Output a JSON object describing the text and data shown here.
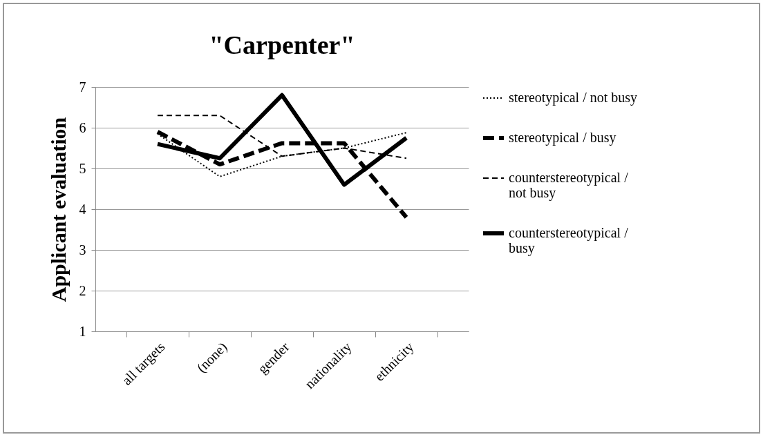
{
  "chart_data": {
    "type": "line",
    "title": "\"Carpenter\"",
    "ylabel": "Applicant evaluation",
    "categories": [
      "all targets",
      "(none)",
      "gender",
      "nationality",
      "ethnicity"
    ],
    "series": [
      {
        "name": "stereotypical / not busy",
        "color": "#000000",
        "line_style": "dotted",
        "values": [
          5.85,
          4.8,
          5.3,
          5.5,
          5.88
        ]
      },
      {
        "name": "stereotypical / busy",
        "color": "#000000",
        "line_style": "dashed",
        "values": [
          5.9,
          5.1,
          5.62,
          5.62,
          3.8
        ]
      },
      {
        "name": "counterstereotypical / not busy",
        "color": "#000000",
        "line_style": "dashed",
        "values": [
          6.3,
          6.3,
          5.3,
          5.5,
          5.25
        ]
      },
      {
        "name": "counterstereotypical / busy",
        "color": "#000000",
        "line_style": "solid",
        "values": [
          5.6,
          5.25,
          6.8,
          4.6,
          5.75
        ]
      }
    ],
    "ylim": [
      1,
      7
    ],
    "yticks": [
      1,
      2,
      3,
      4,
      5,
      6,
      7
    ],
    "grid": "y",
    "legend": "right",
    "marker": "none"
  }
}
